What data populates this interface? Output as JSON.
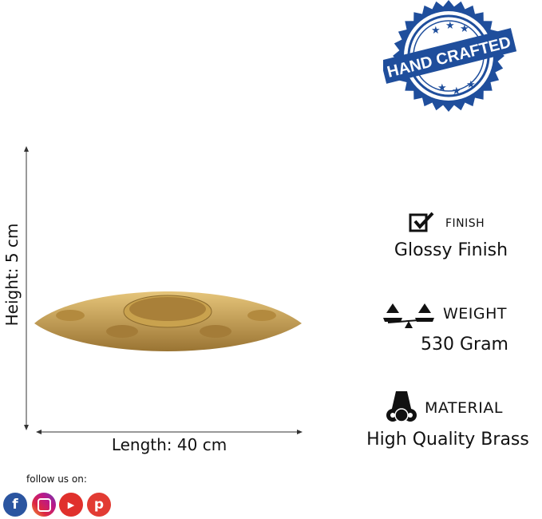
{
  "badge": {
    "text": "HAND CRAFTED",
    "color": "#1f4e9c"
  },
  "dimensions": {
    "height": "Height: 5 cm",
    "length": "Length: 40 cm"
  },
  "features": [
    {
      "icon": "checkbox-icon",
      "label": "FINISH",
      "value": "Glossy Finish"
    },
    {
      "icon": "scale-icon",
      "label": "WEIGHT",
      "value": "530 Gram"
    },
    {
      "icon": "material-rolls-icon",
      "label": "MATERIAL",
      "value": "High Quality Brass"
    }
  ],
  "social": {
    "label": "follow us on:",
    "icons": [
      {
        "name": "facebook-icon",
        "color": "#2b55a0"
      },
      {
        "name": "instagram-icon",
        "color": "#c13584"
      },
      {
        "name": "youtube-icon",
        "color": "#e0302c"
      },
      {
        "name": "pinterest-icon",
        "color": "#e23b33"
      }
    ]
  },
  "colors": {
    "brass": "#c9a24e",
    "text": "#111111"
  }
}
